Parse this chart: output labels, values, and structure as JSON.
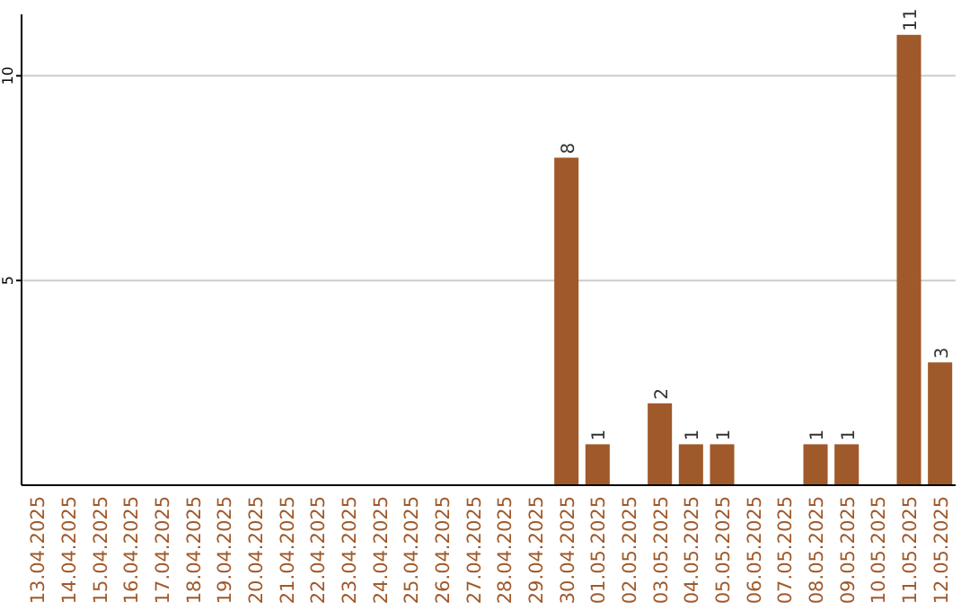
{
  "chart_data": {
    "type": "bar",
    "categories": [
      "13.04.2025",
      "14.04.2025",
      "15.04.2025",
      "16.04.2025",
      "17.04.2025",
      "18.04.2025",
      "19.04.2025",
      "20.04.2025",
      "21.04.2025",
      "22.04.2025",
      "23.04.2025",
      "24.04.2025",
      "25.04.2025",
      "26.04.2025",
      "27.04.2025",
      "28.04.2025",
      "29.04.2025",
      "30.04.2025",
      "01.05.2025",
      "02.05.2025",
      "03.05.2025",
      "04.05.2025",
      "05.05.2025",
      "06.05.2025",
      "07.05.2025",
      "08.05.2025",
      "09.05.2025",
      "10.05.2025",
      "11.05.2025",
      "12.05.2025"
    ],
    "values": [
      0,
      0,
      0,
      0,
      0,
      0,
      0,
      0,
      0,
      0,
      0,
      0,
      0,
      0,
      0,
      0,
      0,
      8,
      1,
      0,
      2,
      1,
      1,
      0,
      0,
      1,
      1,
      0,
      11,
      3
    ],
    "value_labels": [
      null,
      null,
      null,
      null,
      null,
      null,
      null,
      null,
      null,
      null,
      null,
      null,
      null,
      null,
      null,
      null,
      null,
      "8",
      "1",
      null,
      "2",
      "1",
      "1",
      null,
      null,
      "1",
      "1",
      null,
      "11",
      "3"
    ],
    "color": "#a0592a",
    "ylim": [
      0,
      11.5
    ],
    "yticks": [
      5,
      10
    ],
    "grid": "y"
  }
}
